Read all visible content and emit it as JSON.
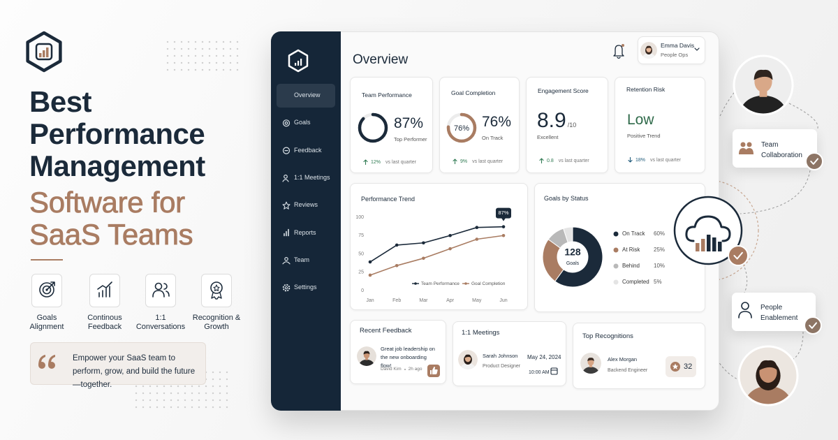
{
  "hero": {
    "headline": [
      "Best",
      "Performance",
      "Management"
    ],
    "highlight": [
      "Software for",
      "SaaS Teams"
    ],
    "features": [
      "Goals Alignment",
      "Continous Feedback",
      "1:1 Conversations",
      "Recognition & Growth"
    ],
    "quote": "Empower your SaaS team to perform, grow, and build the future—together."
  },
  "dashboard": {
    "nav": [
      "Overview",
      "Goals",
      "Feedback",
      "1:1 Meetings",
      "Reviews",
      "Reports",
      "Team",
      "Settings"
    ],
    "active": 0,
    "page_title": "Overview",
    "user": {
      "name": "Emma Davis",
      "role": "People Ops"
    },
    "kpis": [
      {
        "title": "Team Performance",
        "value": 87,
        "value_label": "87%",
        "color": "#1b2a3a",
        "caption": "Top Performer",
        "delta": "12%",
        "trend": "up",
        "note": "vs last quarter"
      },
      {
        "title": "Goal Completion",
        "value": 76,
        "value_label": "76%",
        "color": "#a97c62",
        "ring_label": true,
        "caption": "On Track",
        "delta": "9%",
        "trend": "up",
        "note": "vs last quarter"
      },
      {
        "title": "Engagement Score",
        "value": 8.9,
        "scale": "/10",
        "caption": "Excellent",
        "delta": "0.8",
        "trend": "up",
        "note": "vs last quarter"
      },
      {
        "title": "Retention Risk",
        "value": "Low",
        "caption": "Positive Trend",
        "delta": "18%",
        "trend": "down",
        "note": "vs last quarter"
      }
    ],
    "performance_trend": {
      "type": "line",
      "title": "Performance Trend",
      "categories": [
        "Jan",
        "Feb",
        "Mar",
        "Apr",
        "May",
        "Jun"
      ],
      "series": [
        {
          "name": "Team Performance",
          "color": "#1b2a3a",
          "values": [
            39,
            62,
            65,
            75,
            86,
            87
          ],
          "value_labels": [
            null,
            null,
            null,
            null,
            null,
            "87%"
          ]
        },
        {
          "name": "Goal Completion",
          "color": "#a97c62",
          "values": [
            21,
            34,
            44,
            57,
            70,
            75
          ]
        }
      ],
      "ylim": [
        0,
        100
      ],
      "yticks": [
        0,
        25,
        50,
        75,
        100
      ]
    },
    "goals_by_status": {
      "type": "donut",
      "title": "Goals by Status",
      "total": 128,
      "total_label": "Goals",
      "categories": [
        "On Track",
        "At Risk",
        "Behind",
        "Completed"
      ],
      "values": [
        60,
        25,
        10,
        5
      ],
      "value_labels": [
        "60%",
        "25%",
        "10%",
        "5%"
      ],
      "colors": [
        "#1b2a3a",
        "#a97c62",
        "#b9b9b9",
        "#e4e4e4"
      ]
    },
    "recent_feedback": {
      "title": "Recent Feedback",
      "message": "Great job leadership on the new onboarding flow!",
      "author": "David Kim",
      "time": "2h ago"
    },
    "meetings": {
      "title": "1:1 Meetings",
      "name": "Sarah Johnson",
      "role": "Product Designer",
      "date": "May 24, 2024",
      "time": "10:00 AM"
    },
    "recognitions": {
      "title": "Top Recognitions",
      "name": "Alex Morgan",
      "role": "Backend Engineer",
      "count": 32
    }
  },
  "callouts": [
    "Team Collaboration",
    "People Enablement"
  ]
}
